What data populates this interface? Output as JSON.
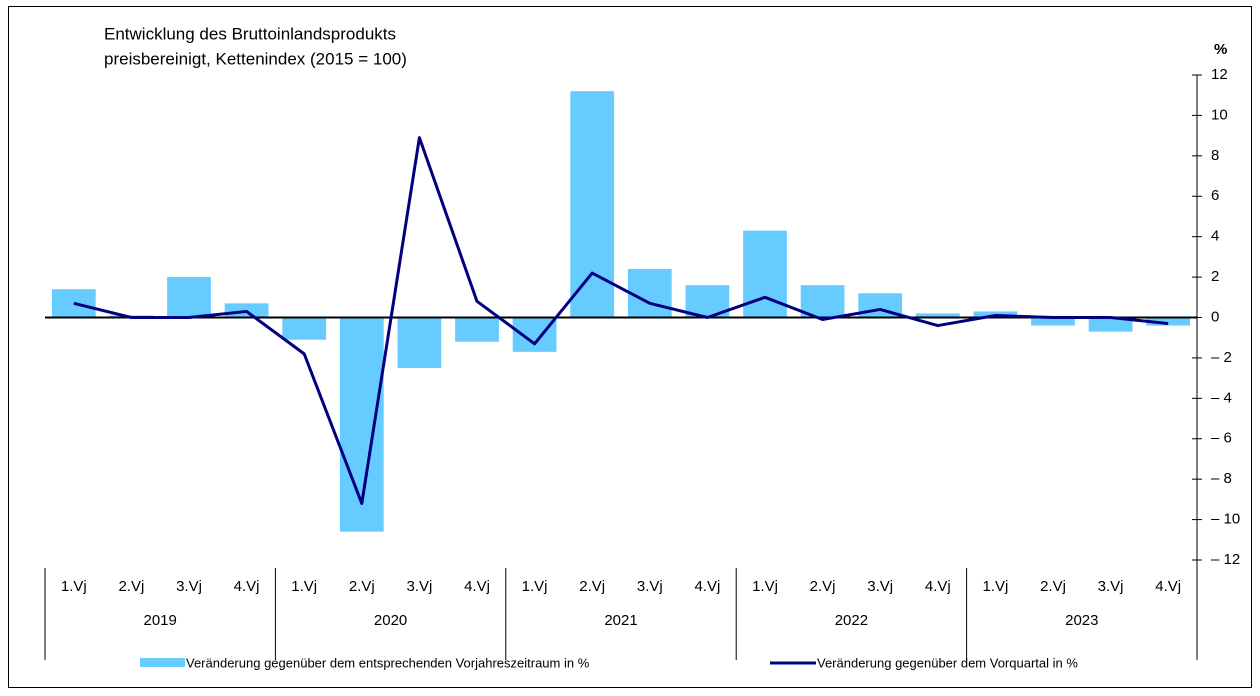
{
  "chart_data": {
    "type": "bar",
    "title": "Entwicklung des Bruttoinlandsprodukts",
    "subtitle": "preisbereinigt, Kettenindex (2015 = 100)",
    "y_axis_label": "%",
    "categories": [
      "1.Vj",
      "2.Vj",
      "3.Vj",
      "4.Vj",
      "1.Vj",
      "2.Vj",
      "3.Vj",
      "4.Vj",
      "1.Vj",
      "2.Vj",
      "3.Vj",
      "4.Vj",
      "1.Vj",
      "2.Vj",
      "3.Vj",
      "4.Vj",
      "1.Vj",
      "2.Vj",
      "3.Vj",
      "4.Vj"
    ],
    "years": [
      "2019",
      "2020",
      "2021",
      "2022",
      "2023"
    ],
    "series": [
      {
        "name": "Veränderung gegenüber dem entsprechenden Vorjahreszeitraum in %",
        "type": "bar",
        "color": "#66ccff",
        "values": [
          1.4,
          0.1,
          2.0,
          0.7,
          -1.1,
          -10.6,
          -2.5,
          -1.2,
          -1.7,
          11.2,
          2.4,
          1.6,
          4.3,
          1.6,
          1.2,
          0.2,
          0.3,
          -0.4,
          -0.7,
          -0.4
        ]
      },
      {
        "name": "Veränderung gegenüber dem Vorquartal in %",
        "type": "line",
        "color": "#000080",
        "values": [
          0.7,
          0.0,
          0.0,
          0.3,
          -1.8,
          -9.2,
          8.9,
          0.8,
          -1.3,
          2.2,
          0.7,
          0.0,
          1.0,
          -0.1,
          0.4,
          -0.4,
          0.1,
          0.0,
          0.0,
          -0.3
        ]
      }
    ],
    "ylim": [
      -12,
      12
    ],
    "yticks": [
      {
        "value": -12,
        "label": "– 12"
      },
      {
        "value": -10,
        "label": "– 10"
      },
      {
        "value": -8,
        "label": "– 8"
      },
      {
        "value": -6,
        "label": "– 6"
      },
      {
        "value": -4,
        "label": "– 4"
      },
      {
        "value": -2,
        "label": "– 2"
      },
      0,
      2,
      4,
      6,
      8,
      10,
      12
    ]
  }
}
